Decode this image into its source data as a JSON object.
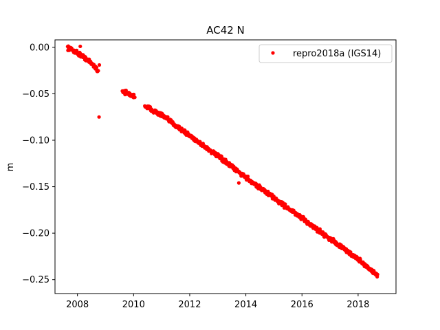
{
  "chart_data": {
    "type": "scatter",
    "title": "AC42 N",
    "xlabel": "",
    "ylabel": "m",
    "xlim": [
      2007.2,
      2019.35
    ],
    "ylim": [
      -0.265,
      0.008
    ],
    "xticks": [
      2008,
      2010,
      2012,
      2014,
      2016,
      2018
    ],
    "yticks": [
      0.0,
      -0.05,
      -0.1,
      -0.15,
      -0.2,
      -0.25
    ],
    "ytick_labels": [
      "0.00",
      "−0.05",
      "−0.10",
      "−0.15",
      "−0.20",
      "−0.25"
    ],
    "grid": false,
    "legend": "top-right",
    "series": [
      {
        "name": "repro2018a (IGS14)",
        "color": "#ff0000",
        "marker": "point",
        "segments": [
          {
            "x": [
              2007.65,
              2008.0,
              2008.3,
              2008.6,
              2008.75
            ],
            "y": [
              0.0,
              -0.006,
              -0.012,
              -0.02,
              -0.026
            ]
          },
          {
            "x": [
              2009.6,
              2009.8,
              2010.05
            ],
            "y": [
              -0.047,
              -0.05,
              -0.053
            ]
          },
          {
            "x": [
              2010.4,
              2011.0,
              2012.0,
              2013.0,
              2014.0,
              2015.0,
              2016.0,
              2017.0,
              2018.0,
              2018.7
            ],
            "y": [
              -0.063,
              -0.073,
              -0.095,
              -0.117,
              -0.14,
              -0.162,
              -0.184,
              -0.206,
              -0.228,
              -0.246
            ]
          }
        ],
        "outliers": [
          {
            "x": 2008.1,
            "y": 0.001
          },
          {
            "x": 2008.78,
            "y": -0.019
          },
          {
            "x": 2008.77,
            "y": -0.075
          },
          {
            "x": 2013.75,
            "y": -0.146
          }
        ]
      }
    ]
  }
}
